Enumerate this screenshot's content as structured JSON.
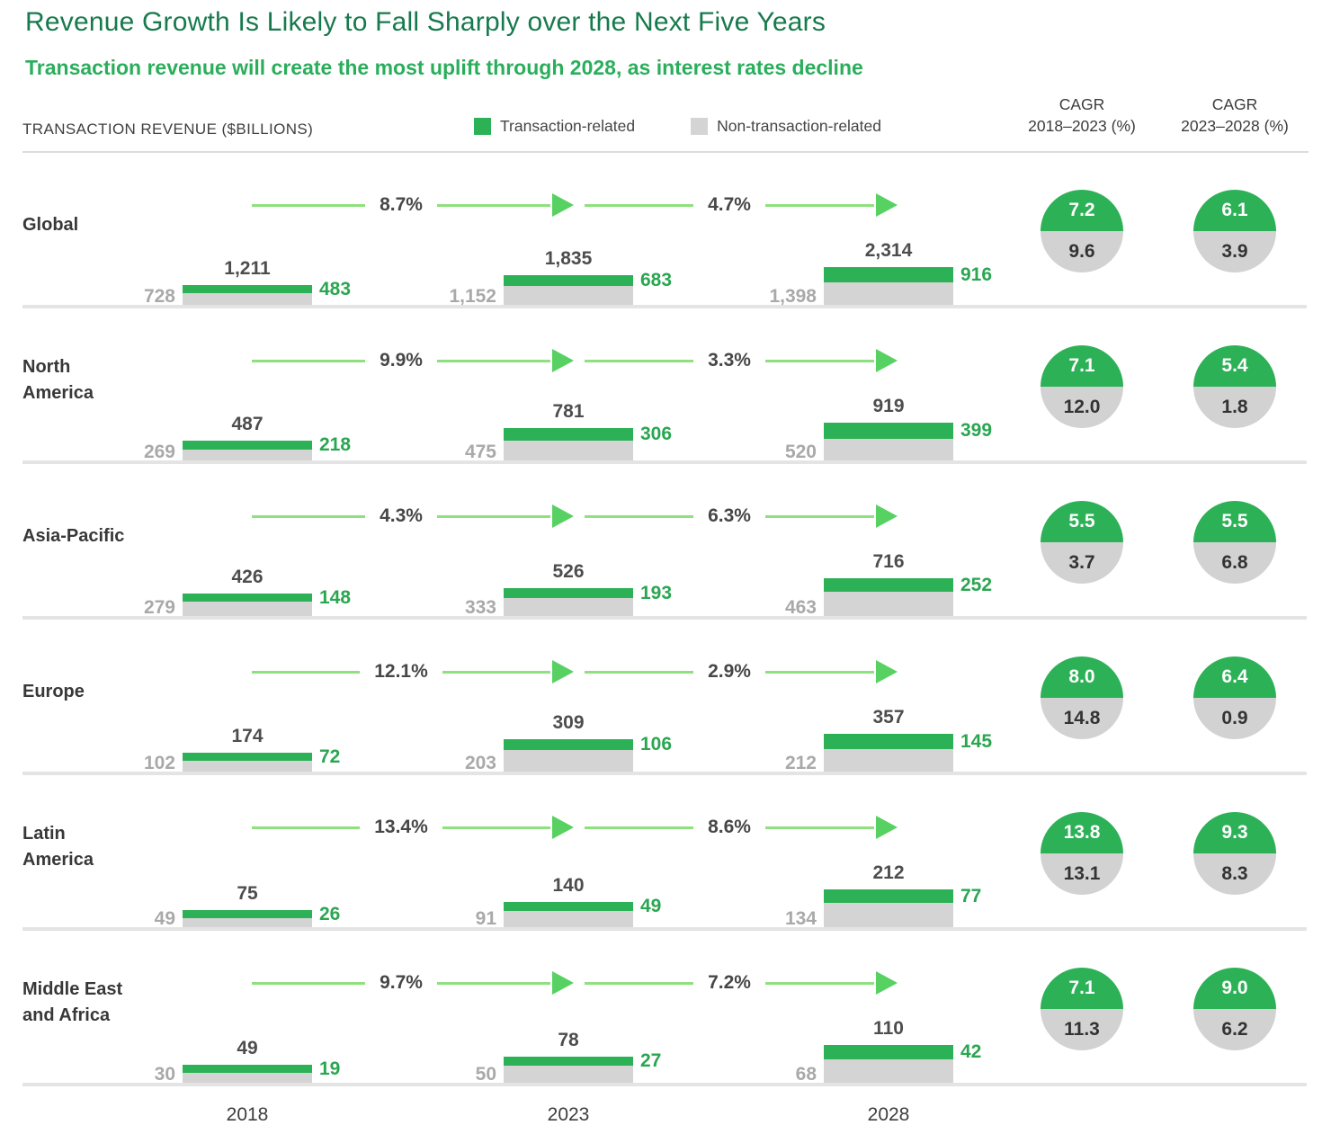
{
  "header": {
    "title": "Revenue Growth Is Likely to Fall Sharply over the Next Five Years",
    "subtitle": "Transaction revenue will create the most uplift through 2028, as interest rates decline",
    "axis_label": "TRANSACTION REVENUE ($BILLIONS)",
    "legend": [
      {
        "label": "Transaction-related",
        "color": "#2db157"
      },
      {
        "label": "Non-transaction-related",
        "color": "#d4d4d4"
      }
    ],
    "cagr_columns": [
      {
        "line1": "CAGR",
        "line2": "2018–2023 (%)"
      },
      {
        "line1": "CAGR",
        "line2": "2023–2028 (%)"
      }
    ]
  },
  "colors": {
    "title_green": "#177a4d",
    "subtitle_green": "#2bae5c",
    "transaction_green": "#2db157",
    "non_transaction_gray": "#d4d4d4",
    "arrow_light_green": "#8fe07e",
    "arrow_head_green": "#58d163",
    "gray_value_text": "#a9a9a9",
    "green_value_text": "#2aa651"
  },
  "chart_data": {
    "type": "bar",
    "subtype": "stacked-bar-small-multiples",
    "title": "Transaction revenue ($billions)",
    "ylabel": "Transaction revenue ($billions)",
    "categories": [
      "2018",
      "2023",
      "2028"
    ],
    "legend_position": "top",
    "regions": [
      {
        "name": "Global",
        "name_lines": [
          "Global"
        ],
        "bars": [
          {
            "year": "2018",
            "total": 1211,
            "total_label": "1,211",
            "transaction": 483,
            "transaction_label": "483",
            "non_transaction": 728,
            "non_transaction_label": "728"
          },
          {
            "year": "2023",
            "total": 1835,
            "total_label": "1,835",
            "transaction": 683,
            "transaction_label": "683",
            "non_transaction": 1152,
            "non_transaction_label": "1,152"
          },
          {
            "year": "2028",
            "total": 2314,
            "total_label": "2,314",
            "transaction": 916,
            "transaction_label": "916",
            "non_transaction": 1398,
            "non_transaction_label": "1,398"
          }
        ],
        "growth_labels": [
          "8.7%",
          "4.7%"
        ],
        "cagr_2018_2023": {
          "transaction": "7.2",
          "non_transaction": "9.6"
        },
        "cagr_2023_2028": {
          "transaction": "6.1",
          "non_transaction": "3.9"
        }
      },
      {
        "name": "North America",
        "name_lines": [
          "North",
          "America"
        ],
        "bars": [
          {
            "year": "2018",
            "total": 487,
            "total_label": "487",
            "transaction": 218,
            "transaction_label": "218",
            "non_transaction": 269,
            "non_transaction_label": "269"
          },
          {
            "year": "2023",
            "total": 781,
            "total_label": "781",
            "transaction": 306,
            "transaction_label": "306",
            "non_transaction": 475,
            "non_transaction_label": "475"
          },
          {
            "year": "2028",
            "total": 919,
            "total_label": "919",
            "transaction": 399,
            "transaction_label": "399",
            "non_transaction": 520,
            "non_transaction_label": "520"
          }
        ],
        "growth_labels": [
          "9.9%",
          "3.3%"
        ],
        "cagr_2018_2023": {
          "transaction": "7.1",
          "non_transaction": "12.0"
        },
        "cagr_2023_2028": {
          "transaction": "5.4",
          "non_transaction": "1.8"
        }
      },
      {
        "name": "Asia-Pacific",
        "name_lines": [
          "Asia-Pacific"
        ],
        "bars": [
          {
            "year": "2018",
            "total": 426,
            "total_label": "426",
            "transaction": 148,
            "transaction_label": "148",
            "non_transaction": 279,
            "non_transaction_label": "279"
          },
          {
            "year": "2023",
            "total": 526,
            "total_label": "526",
            "transaction": 193,
            "transaction_label": "193",
            "non_transaction": 333,
            "non_transaction_label": "333"
          },
          {
            "year": "2028",
            "total": 716,
            "total_label": "716",
            "transaction": 252,
            "transaction_label": "252",
            "non_transaction": 463,
            "non_transaction_label": "463"
          }
        ],
        "growth_labels": [
          "4.3%",
          "6.3%"
        ],
        "cagr_2018_2023": {
          "transaction": "5.5",
          "non_transaction": "3.7"
        },
        "cagr_2023_2028": {
          "transaction": "5.5",
          "non_transaction": "6.8"
        }
      },
      {
        "name": "Europe",
        "name_lines": [
          "Europe"
        ],
        "bars": [
          {
            "year": "2018",
            "total": 174,
            "total_label": "174",
            "transaction": 72,
            "transaction_label": "72",
            "non_transaction": 102,
            "non_transaction_label": "102"
          },
          {
            "year": "2023",
            "total": 309,
            "total_label": "309",
            "transaction": 106,
            "transaction_label": "106",
            "non_transaction": 203,
            "non_transaction_label": "203"
          },
          {
            "year": "2028",
            "total": 357,
            "total_label": "357",
            "transaction": 145,
            "transaction_label": "145",
            "non_transaction": 212,
            "non_transaction_label": "212"
          }
        ],
        "growth_labels": [
          "12.1%",
          "2.9%"
        ],
        "cagr_2018_2023": {
          "transaction": "8.0",
          "non_transaction": "14.8"
        },
        "cagr_2023_2028": {
          "transaction": "6.4",
          "non_transaction": "0.9"
        }
      },
      {
        "name": "Latin America",
        "name_lines": [
          "Latin",
          "America"
        ],
        "bars": [
          {
            "year": "2018",
            "total": 75,
            "total_label": "75",
            "transaction": 26,
            "transaction_label": "26",
            "non_transaction": 49,
            "non_transaction_label": "49"
          },
          {
            "year": "2023",
            "total": 140,
            "total_label": "140",
            "transaction": 49,
            "transaction_label": "49",
            "non_transaction": 91,
            "non_transaction_label": "91"
          },
          {
            "year": "2028",
            "total": 212,
            "total_label": "212",
            "transaction": 77,
            "transaction_label": "77",
            "non_transaction": 134,
            "non_transaction_label": "134"
          }
        ],
        "growth_labels": [
          "13.4%",
          "8.6%"
        ],
        "cagr_2018_2023": {
          "transaction": "13.8",
          "non_transaction": "13.1"
        },
        "cagr_2023_2028": {
          "transaction": "9.3",
          "non_transaction": "8.3"
        }
      },
      {
        "name": "Middle East and Africa",
        "name_lines": [
          "Middle East",
          "and Africa"
        ],
        "bars": [
          {
            "year": "2018",
            "total": 49,
            "total_label": "49",
            "transaction": 19,
            "transaction_label": "19",
            "non_transaction": 30,
            "non_transaction_label": "30"
          },
          {
            "year": "2023",
            "total": 78,
            "total_label": "78",
            "transaction": 27,
            "transaction_label": "27",
            "non_transaction": 50,
            "non_transaction_label": "50"
          },
          {
            "year": "2028",
            "total": 110,
            "total_label": "110",
            "transaction": 42,
            "transaction_label": "42",
            "non_transaction": 68,
            "non_transaction_label": "68"
          }
        ],
        "growth_labels": [
          "9.7%",
          "7.2%"
        ],
        "cagr_2018_2023": {
          "transaction": "7.1",
          "non_transaction": "11.3"
        },
        "cagr_2023_2028": {
          "transaction": "9.0",
          "non_transaction": "6.2"
        }
      }
    ]
  }
}
